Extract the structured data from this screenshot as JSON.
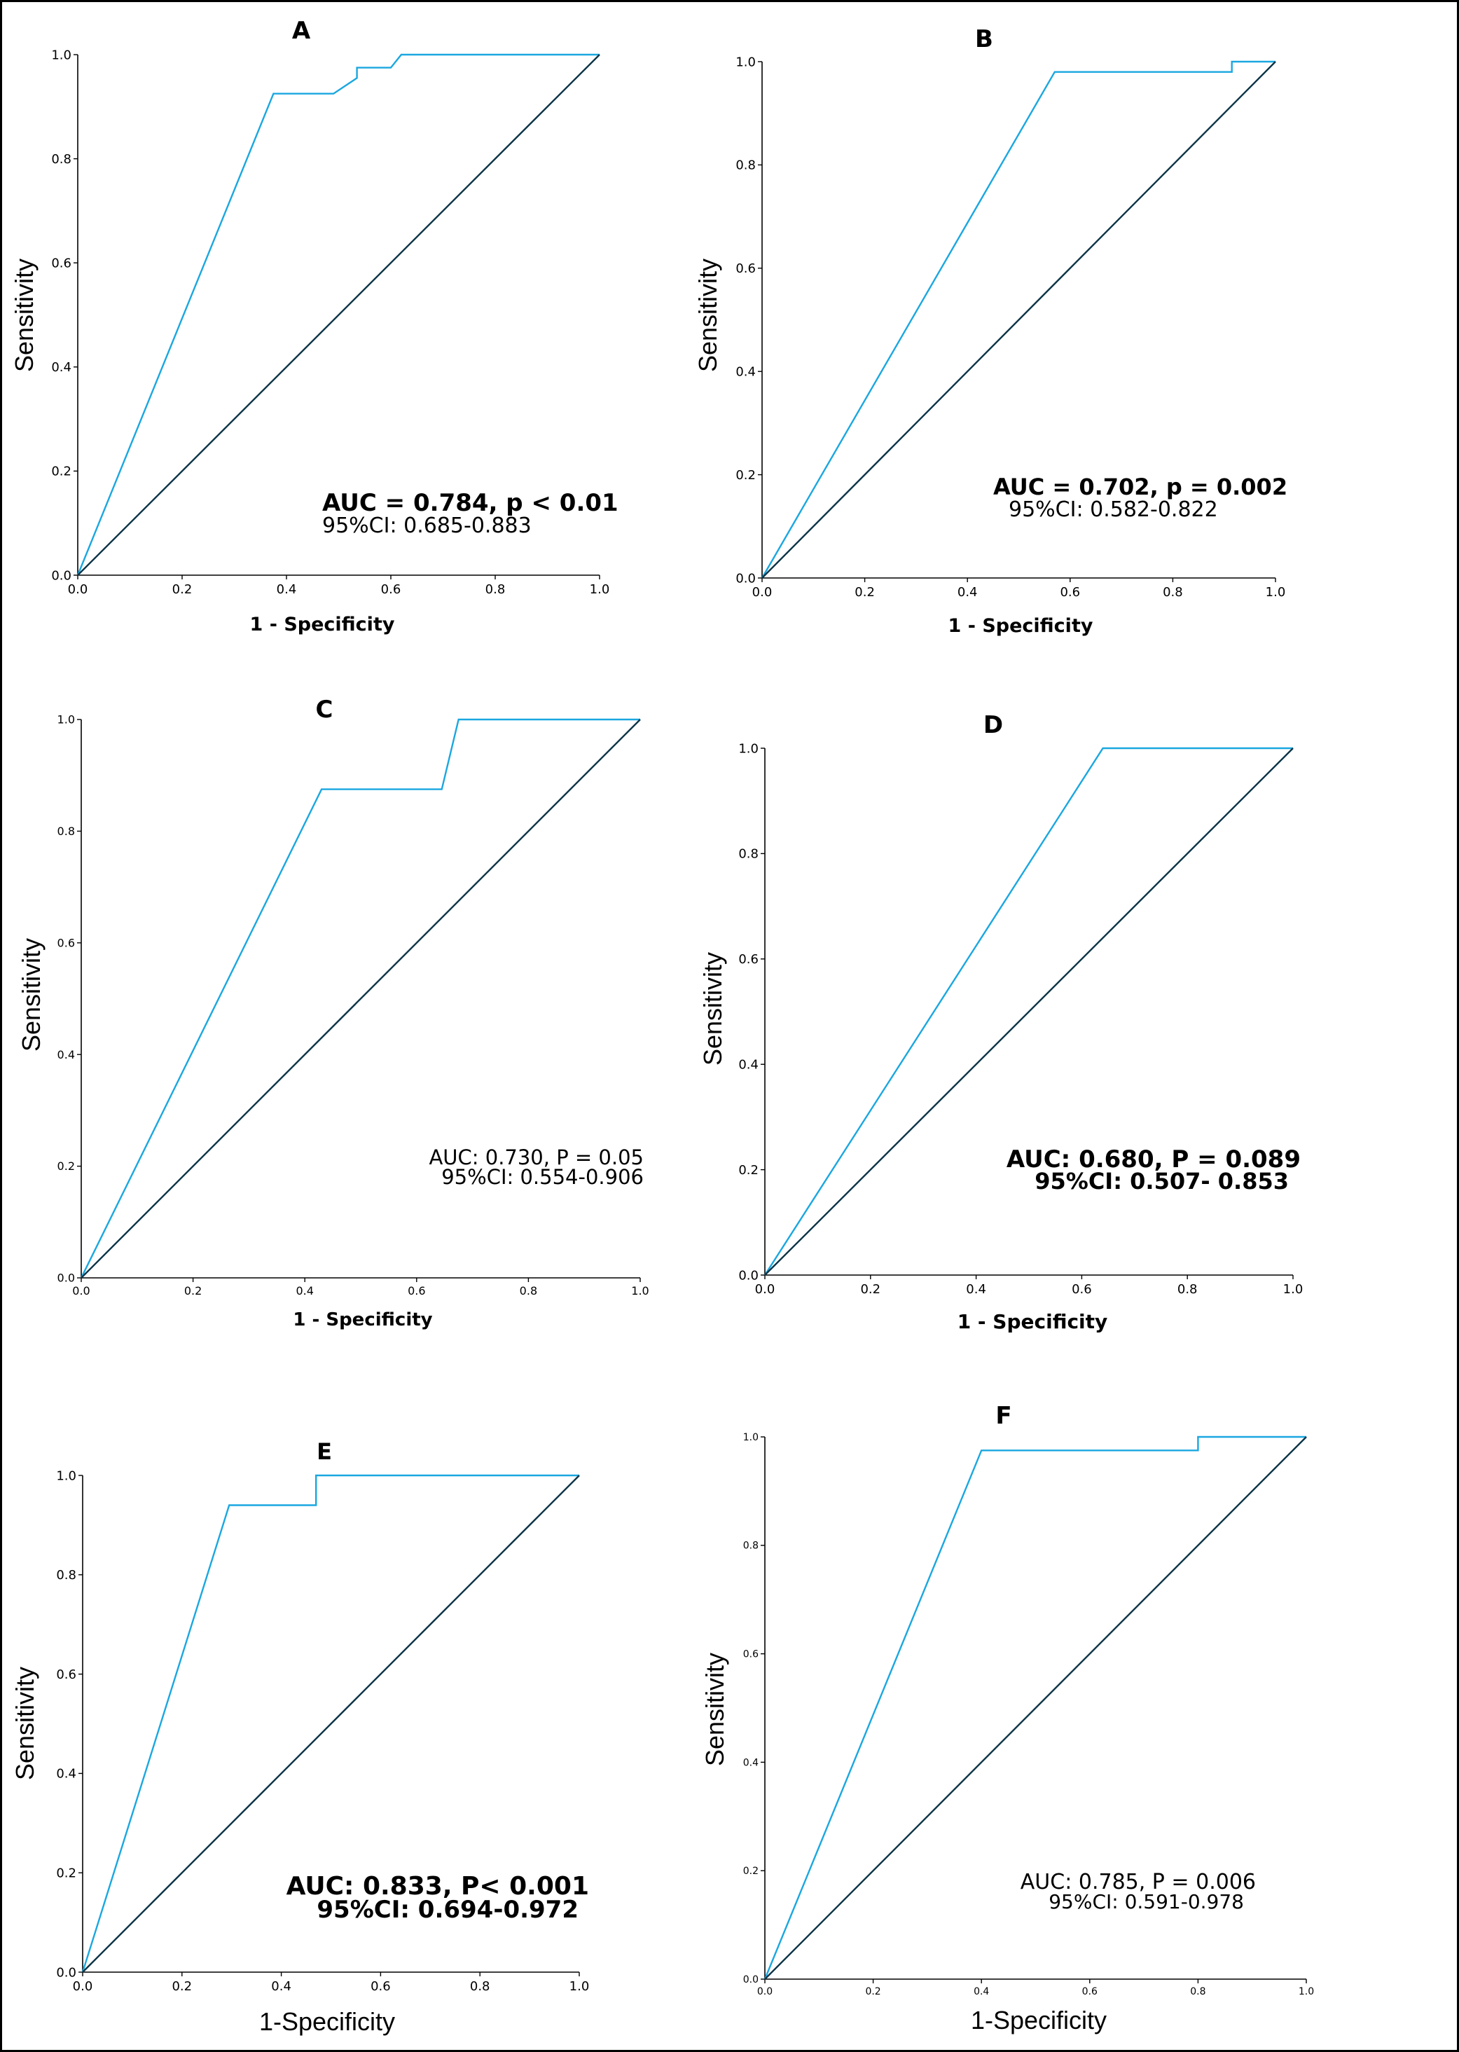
{
  "colors": {
    "roc_line": "#1aa7e0",
    "reference_line": "#0c3447",
    "axis": "#000000"
  },
  "chart_data": [
    {
      "type": "line",
      "panel_label": "A",
      "xlabel": "1 - Specificity",
      "ylabel": "Sensitivity",
      "xlim": [
        0,
        1
      ],
      "ylim": [
        0,
        1
      ],
      "x_ticks": [
        "0.0",
        "0.2",
        "0.4",
        "0.6",
        "0.8",
        "1.0"
      ],
      "y_ticks": [
        "0.0",
        "0.2",
        "0.4",
        "0.6",
        "0.8",
        "1.0"
      ],
      "grid": false,
      "series": [
        {
          "role": "roc",
          "x": [
            0,
            0.375,
            0.49,
            0.535,
            0.535,
            0.6,
            0.62,
            1.0
          ],
          "y": [
            0,
            0.925,
            0.925,
            0.955,
            0.975,
            0.975,
            1.0,
            1.0
          ]
        },
        {
          "role": "reference",
          "x": [
            0,
            1
          ],
          "y": [
            0,
            1
          ]
        }
      ],
      "annotation": [
        "AUC = 0.784,  p < 0.01",
        "95%CI: 0.685-0.883"
      ]
    },
    {
      "type": "line",
      "panel_label": "B",
      "xlabel": "1 - Specificity",
      "ylabel": "Sensitivity",
      "xlim": [
        0,
        1
      ],
      "ylim": [
        0,
        1
      ],
      "x_ticks": [
        "0.0",
        "0.2",
        "0.4",
        "0.6",
        "0.8",
        "1.0"
      ],
      "y_ticks": [
        "0.0",
        "0.2",
        "0.4",
        "0.6",
        "0.8",
        "1.0"
      ],
      "grid": false,
      "series": [
        {
          "role": "roc",
          "x": [
            0,
            0.57,
            0.915,
            0.915,
            1.0
          ],
          "y": [
            0,
            0.98,
            0.98,
            1.0,
            1.0
          ]
        },
        {
          "role": "reference",
          "x": [
            0,
            1
          ],
          "y": [
            0,
            1
          ]
        }
      ],
      "annotation": [
        "AUC = 0.702, p = 0.002",
        "95%CI: 0.582-0.822"
      ]
    },
    {
      "type": "line",
      "panel_label": "C",
      "xlabel": "1 - Specificity",
      "ylabel": "Sensitivity",
      "xlim": [
        0,
        1
      ],
      "ylim": [
        0,
        1
      ],
      "x_ticks": [
        "0.0",
        "0.2",
        "0.4",
        "0.6",
        "0.8",
        "1.0"
      ],
      "y_ticks": [
        "0.0",
        "0.2",
        "0.4",
        "0.6",
        "0.8",
        "1.0"
      ],
      "grid": false,
      "series": [
        {
          "role": "roc",
          "x": [
            0,
            0.43,
            0.645,
            0.675,
            1.0
          ],
          "y": [
            0,
            0.875,
            0.875,
            1.0,
            1.0
          ]
        },
        {
          "role": "reference",
          "x": [
            0,
            1
          ],
          "y": [
            0,
            1
          ]
        }
      ],
      "annotation": [
        "AUC: 0.730, P = 0.05",
        "95%CI: 0.554-0.906"
      ]
    },
    {
      "type": "line",
      "panel_label": "D",
      "xlabel": "1 - Specificity",
      "ylabel": "Sensitivity",
      "xlim": [
        0,
        1
      ],
      "ylim": [
        0,
        1
      ],
      "x_ticks": [
        "0.0",
        "0.2",
        "0.4",
        "0.6",
        "0.8",
        "1.0"
      ],
      "y_ticks": [
        "0.0",
        "0.2",
        "0.4",
        "0.6",
        "0.8",
        "1.0"
      ],
      "grid": false,
      "series": [
        {
          "role": "roc",
          "x": [
            0,
            0.64,
            1.0
          ],
          "y": [
            0,
            1.0,
            1.0
          ]
        },
        {
          "role": "reference",
          "x": [
            0,
            1
          ],
          "y": [
            0,
            1
          ]
        }
      ],
      "annotation": [
        "AUC: 0.680, P = 0.089",
        "95%CI: 0.507- 0.853"
      ]
    },
    {
      "type": "line",
      "panel_label": "E",
      "xlabel": "1-Specificity",
      "ylabel": "Sensitivity",
      "xlim": [
        0,
        1
      ],
      "ylim": [
        0,
        1
      ],
      "x_ticks": [
        "0.0",
        "0.2",
        "0.4",
        "0.6",
        "0.8",
        "1.0"
      ],
      "y_ticks": [
        "0.0",
        "0.2",
        "0.4",
        "0.6",
        "0.8",
        "1.0"
      ],
      "grid": false,
      "series": [
        {
          "role": "roc",
          "x": [
            0,
            0.295,
            0.47,
            0.47,
            1.0
          ],
          "y": [
            0,
            0.94,
            0.94,
            1.0,
            1.0
          ]
        },
        {
          "role": "reference",
          "x": [
            0,
            1
          ],
          "y": [
            0,
            1
          ]
        }
      ],
      "annotation": [
        "AUC: 0.833, P< 0.001",
        "95%CI: 0.694-0.972"
      ]
    },
    {
      "type": "line",
      "panel_label": "F",
      "xlabel": "1-Specificity",
      "ylabel": "Sensitivity",
      "xlim": [
        0,
        1
      ],
      "ylim": [
        0,
        1
      ],
      "x_ticks": [
        "0.0",
        "0.2",
        "0.4",
        "0.6",
        "0.8",
        "1.0"
      ],
      "y_ticks": [
        "0.0",
        "0.2",
        "0.4",
        "0.6",
        "0.8",
        "1.0"
      ],
      "grid": false,
      "series": [
        {
          "role": "roc",
          "x": [
            0,
            0.4,
            0.8,
            0.8,
            1.0
          ],
          "y": [
            0,
            0.975,
            0.975,
            1.0,
            1.0
          ]
        },
        {
          "role": "reference",
          "x": [
            0,
            1
          ],
          "y": [
            0,
            1
          ]
        }
      ],
      "annotation": [
        "AUC: 0.785, P = 0.006",
        "95%CI: 0.591-0.978"
      ]
    }
  ]
}
